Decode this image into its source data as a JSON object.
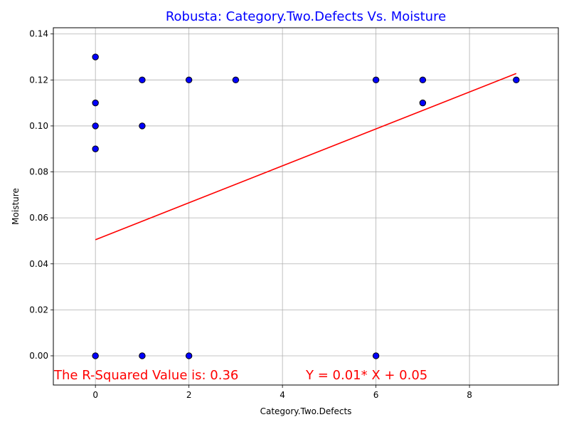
{
  "chart_data": {
    "type": "scatter",
    "title": "Robusta: Category.Two.Defects Vs. Moisture",
    "xlabel": "Category.Two.Defects",
    "ylabel": "Moisture",
    "xlim": [
      -0.9,
      9.9
    ],
    "ylim": [
      -0.0127,
      0.1427
    ],
    "xticks": [
      0,
      2,
      4,
      6,
      8
    ],
    "yticks": [
      0.0,
      0.02,
      0.04,
      0.06,
      0.08,
      0.1,
      0.12,
      0.14
    ],
    "ytick_labels": [
      "0.00",
      "0.02",
      "0.04",
      "0.06",
      "0.08",
      "0.10",
      "0.12",
      "0.14"
    ],
    "grid": true,
    "points": [
      {
        "x": 0,
        "y": 0.13
      },
      {
        "x": 0,
        "y": 0.11
      },
      {
        "x": 0,
        "y": 0.1
      },
      {
        "x": 0,
        "y": 0.09
      },
      {
        "x": 0,
        "y": 0.0
      },
      {
        "x": 1,
        "y": 0.12
      },
      {
        "x": 1,
        "y": 0.1
      },
      {
        "x": 1,
        "y": 0.0
      },
      {
        "x": 2,
        "y": 0.12
      },
      {
        "x": 2,
        "y": 0.0
      },
      {
        "x": 3,
        "y": 0.12
      },
      {
        "x": 6,
        "y": 0.12
      },
      {
        "x": 6,
        "y": 0.0
      },
      {
        "x": 7,
        "y": 0.12
      },
      {
        "x": 7,
        "y": 0.11
      },
      {
        "x": 9,
        "y": 0.12
      }
    ],
    "point_color": "#0000ff",
    "point_edge_color": "#000000",
    "regression": {
      "x": [
        0,
        9
      ],
      "y": [
        0.0505,
        0.1228
      ],
      "color": "#ff0000"
    },
    "annotations": {
      "r_squared": "The R-Squared Value is: 0.36",
      "equation": "Y = 0.01* X + 0.05",
      "color": "#ff0000"
    },
    "title_color": "#0000ff"
  }
}
